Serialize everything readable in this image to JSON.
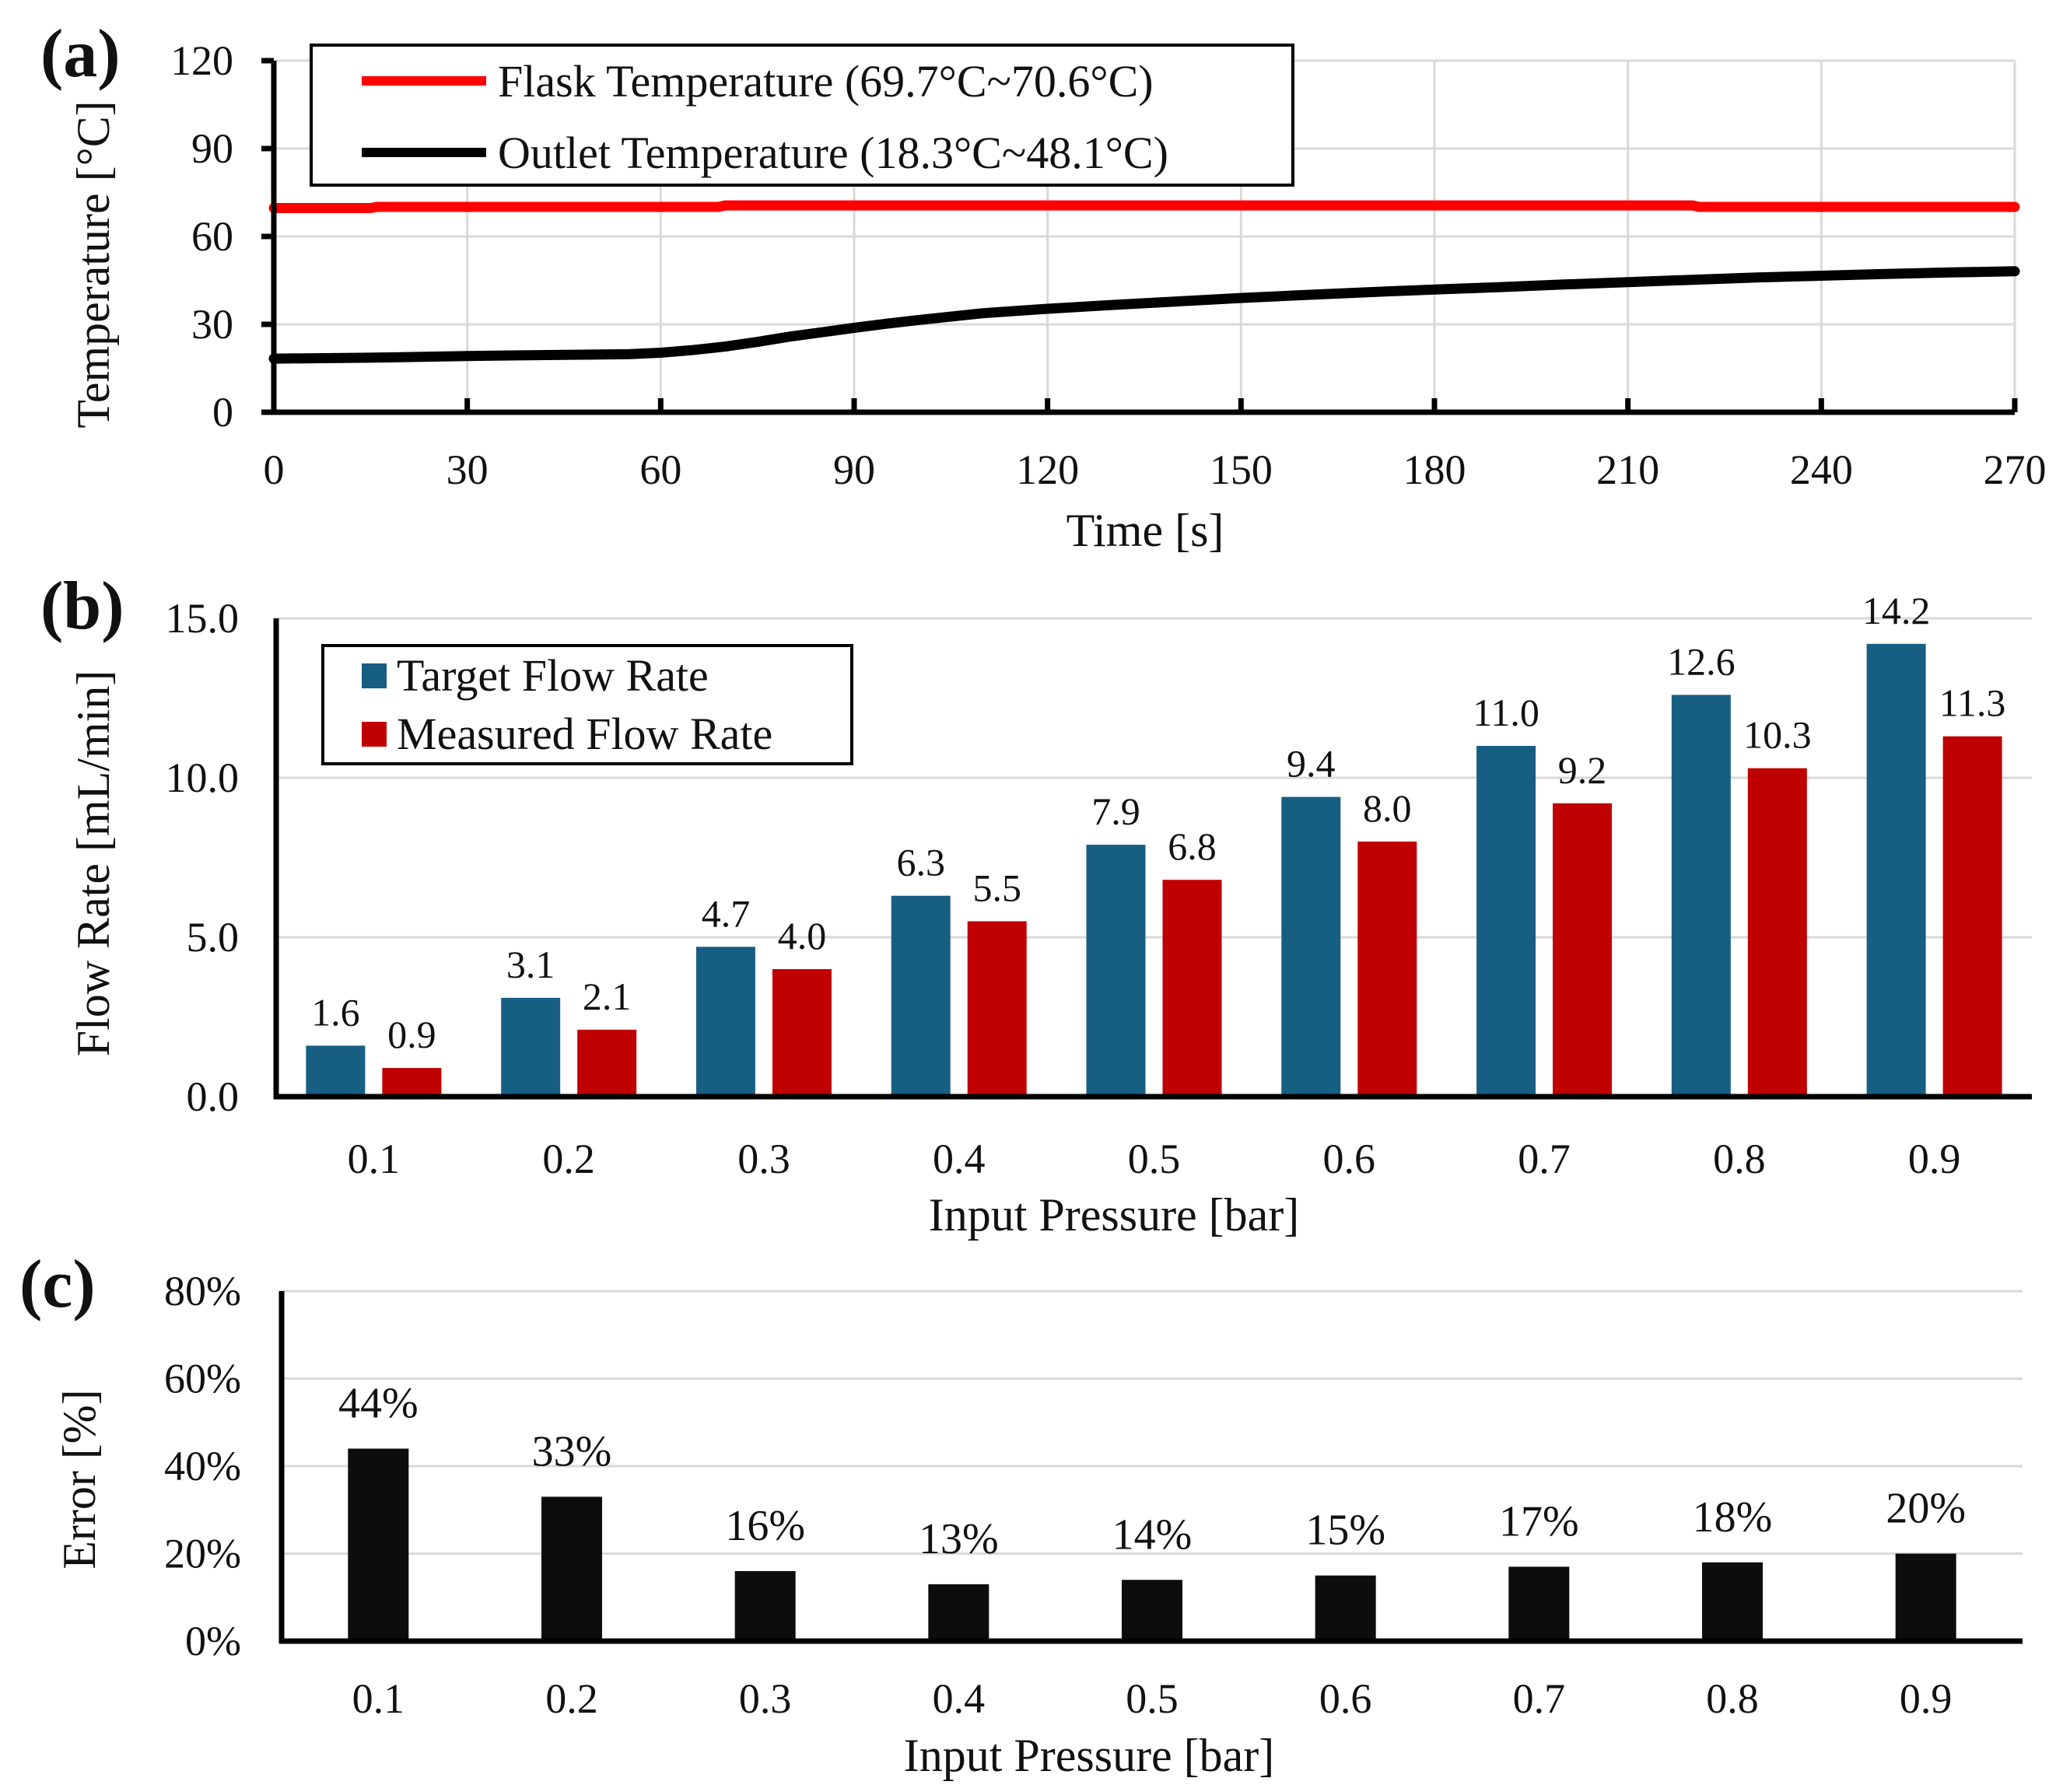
{
  "chart_data": [
    {
      "panel": "(a)",
      "type": "line",
      "xlabel": "Time [s]",
      "ylabel": "Temperature [°C]",
      "xlim": [
        0,
        270
      ],
      "ylim": [
        0,
        120
      ],
      "xticks": [
        "0",
        "30",
        "60",
        "90",
        "120",
        "150",
        "180",
        "210",
        "240",
        "270"
      ],
      "yticks": [
        "0",
        "30",
        "60",
        "90",
        "120"
      ],
      "legend": "top-left",
      "series": [
        {
          "name": "Flask Temperature (69.7°C~70.6°C)",
          "color": "#ff0000",
          "x": [
            0,
            15,
            16,
            69,
            70,
            220,
            221,
            270
          ],
          "y": [
            69.7,
            69.7,
            70.1,
            70.1,
            70.6,
            70.6,
            70.1,
            70.1
          ]
        },
        {
          "name": "Outlet Temperature (18.3°C~48.1°C)",
          "color": "#000000",
          "x": [
            0,
            15,
            30,
            45,
            55,
            60,
            65,
            70,
            75,
            80,
            85,
            90,
            95,
            100,
            110,
            120,
            130,
            140,
            150,
            160,
            170,
            180,
            190,
            200,
            210,
            220,
            230,
            240,
            250,
            260,
            270
          ],
          "y": [
            18.3,
            18.6,
            19.2,
            19.6,
            19.8,
            20.3,
            21.2,
            22.4,
            24.0,
            25.8,
            27.3,
            28.8,
            30.2,
            31.5,
            33.8,
            35.3,
            36.6,
            37.8,
            39.0,
            40.0,
            41.0,
            41.9,
            42.7,
            43.6,
            44.4,
            45.2,
            46.0,
            46.6,
            47.2,
            47.7,
            48.1
          ]
        }
      ]
    },
    {
      "panel": "(b)",
      "type": "bar",
      "xlabel": "Input Pressure [bar]",
      "ylabel": "Flow Rate [mL/min]",
      "ylim": [
        0,
        15
      ],
      "yticks": [
        "0.0",
        "5.0",
        "10.0",
        "15.0"
      ],
      "categories": [
        "0.1",
        "0.2",
        "0.3",
        "0.4",
        "0.5",
        "0.6",
        "0.7",
        "0.8",
        "0.9"
      ],
      "legend": "top-left",
      "series": [
        {
          "name": "Target Flow Rate",
          "color": "#175e83",
          "values": [
            1.6,
            3.1,
            4.7,
            6.3,
            7.9,
            9.4,
            11.0,
            12.6,
            14.2
          ],
          "labels": [
            "1.6",
            "3.1",
            "4.7",
            "6.3",
            "7.9",
            "9.4",
            "11.0",
            "12.6",
            "14.2"
          ]
        },
        {
          "name": "Measured Flow Rate",
          "color": "#c00000",
          "values": [
            0.9,
            2.1,
            4.0,
            5.5,
            6.8,
            8.0,
            9.2,
            10.3,
            11.3
          ],
          "labels": [
            "0.9",
            "2.1",
            "4.0",
            "5.5",
            "6.8",
            "8.0",
            "9.2",
            "10.3",
            "11.3"
          ]
        }
      ]
    },
    {
      "panel": "(c)",
      "type": "bar",
      "xlabel": "Input Pressure [bar]",
      "ylabel": "Error [%]",
      "ylim": [
        0,
        80
      ],
      "yticks": [
        "0%",
        "20%",
        "40%",
        "60%",
        "80%"
      ],
      "categories": [
        "0.1",
        "0.2",
        "0.3",
        "0.4",
        "0.5",
        "0.6",
        "0.7",
        "0.8",
        "0.9"
      ],
      "series": [
        {
          "name": "Error",
          "color": "#0d0d0d",
          "values": [
            44,
            33,
            16,
            13,
            14,
            15,
            17,
            18,
            20
          ],
          "labels": [
            "44%",
            "33%",
            "16%",
            "13%",
            "14%",
            "15%",
            "17%",
            "18%",
            "20%"
          ]
        }
      ]
    }
  ]
}
